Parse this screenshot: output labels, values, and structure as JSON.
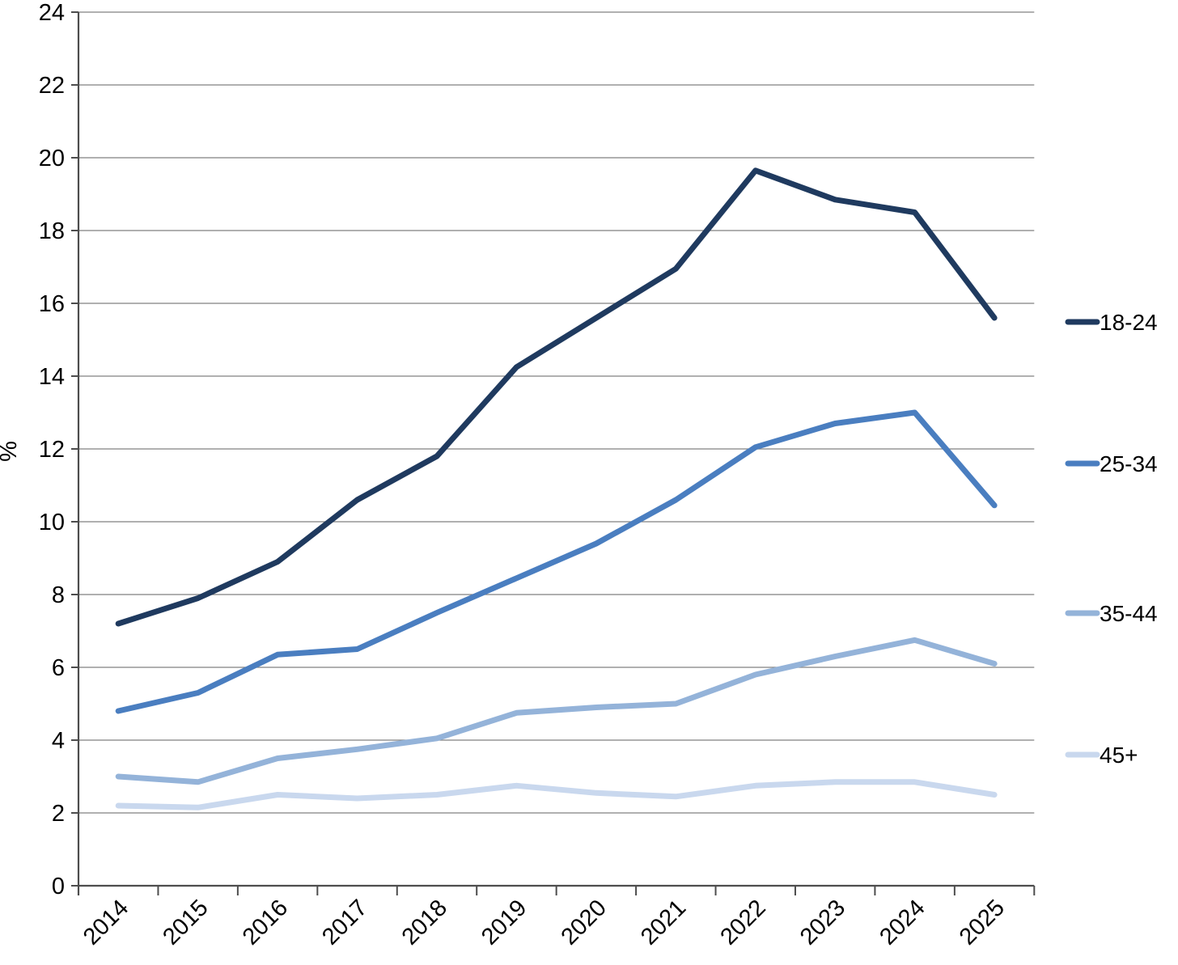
{
  "chart_data": {
    "type": "line",
    "title": "",
    "ylabel": "%",
    "xlabel": "",
    "ylim": [
      0,
      24
    ],
    "ytick_step": 2,
    "yticks": [
      "0",
      "2",
      "4",
      "6",
      "8",
      "10",
      "12",
      "14",
      "16",
      "18",
      "20",
      "22",
      "24"
    ],
    "categories": [
      "2014",
      "2015",
      "2016",
      "2017",
      "2018",
      "2019",
      "2020",
      "2021",
      "2022",
      "2023",
      "2024",
      "2025"
    ],
    "series": [
      {
        "name": "18-24",
        "color": "#1f3a5f",
        "values": [
          7.2,
          7.9,
          8.9,
          10.6,
          11.8,
          14.25,
          15.6,
          16.95,
          19.65,
          18.85,
          18.5,
          15.6
        ]
      },
      {
        "name": "25-34",
        "color": "#4a7ec0",
        "values": [
          4.8,
          5.3,
          6.35,
          6.5,
          7.5,
          8.45,
          9.4,
          10.6,
          12.05,
          12.7,
          13.0,
          10.45
        ]
      },
      {
        "name": "35-44",
        "color": "#94b3d9",
        "values": [
          3.0,
          2.85,
          3.5,
          3.75,
          4.05,
          4.75,
          4.9,
          5.0,
          5.8,
          6.3,
          6.75,
          6.1
        ]
      },
      {
        "name": "45+",
        "color": "#c9d8ee",
        "values": [
          2.2,
          2.15,
          2.5,
          2.4,
          2.5,
          2.75,
          2.55,
          2.45,
          2.75,
          2.85,
          2.85,
          2.5
        ]
      }
    ],
    "grid": "horizontal",
    "grid_color": "#808080",
    "axis_color": "#4d4d4d",
    "text_color": "#000000",
    "legend_position": "right"
  }
}
